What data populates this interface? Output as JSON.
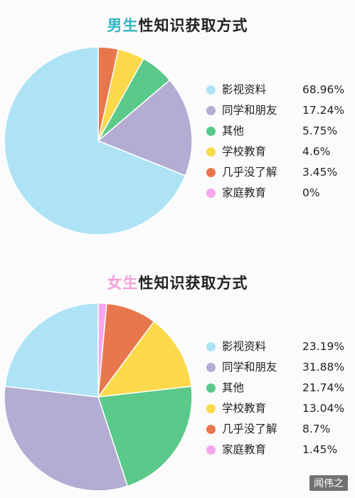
{
  "chart_data": [
    {
      "type": "pie",
      "title_highlight": "男生",
      "title_rest": "性知识获取方式",
      "title_highlight_color": "#2fb5c4",
      "legend_position": "right",
      "series": [
        {
          "name": "影视资料",
          "value": 68.96,
          "value_label": "68.96%",
          "color": "#aee3f6"
        },
        {
          "name": "同学和朋友",
          "value": 17.24,
          "value_label": "17.24%",
          "color": "#b3add3"
        },
        {
          "name": "其他",
          "value": 5.75,
          "value_label": "5.75%",
          "color": "#5bc98a"
        },
        {
          "name": "学校教育",
          "value": 4.6,
          "value_label": "4.6%",
          "color": "#fcd94b"
        },
        {
          "name": "几乎没了解",
          "value": 3.45,
          "value_label": "3.45%",
          "color": "#e8774e"
        },
        {
          "name": "家庭教育",
          "value": 0,
          "value_label": "0%",
          "color": "#f6a6ee"
        }
      ]
    },
    {
      "type": "pie",
      "title_highlight": "女生",
      "title_rest": "性知识获取方式",
      "title_highlight_color": "#f2a0dc",
      "legend_position": "right",
      "series": [
        {
          "name": "影视资料",
          "value": 23.19,
          "value_label": "23.19%",
          "color": "#aee3f6"
        },
        {
          "name": "同学和朋友",
          "value": 31.88,
          "value_label": "31.88%",
          "color": "#b3add3"
        },
        {
          "name": "其他",
          "value": 21.74,
          "value_label": "21.74%",
          "color": "#5bc98a"
        },
        {
          "name": "学校教育",
          "value": 13.04,
          "value_label": "13.04%",
          "color": "#fcd94b"
        },
        {
          "name": "几乎没了解",
          "value": 8.7,
          "value_label": "8.7%",
          "color": "#e8774e"
        },
        {
          "name": "家庭教育",
          "value": 1.45,
          "value_label": "1.45%",
          "color": "#f6a6ee"
        }
      ]
    }
  ],
  "watermark": "闻伟之"
}
